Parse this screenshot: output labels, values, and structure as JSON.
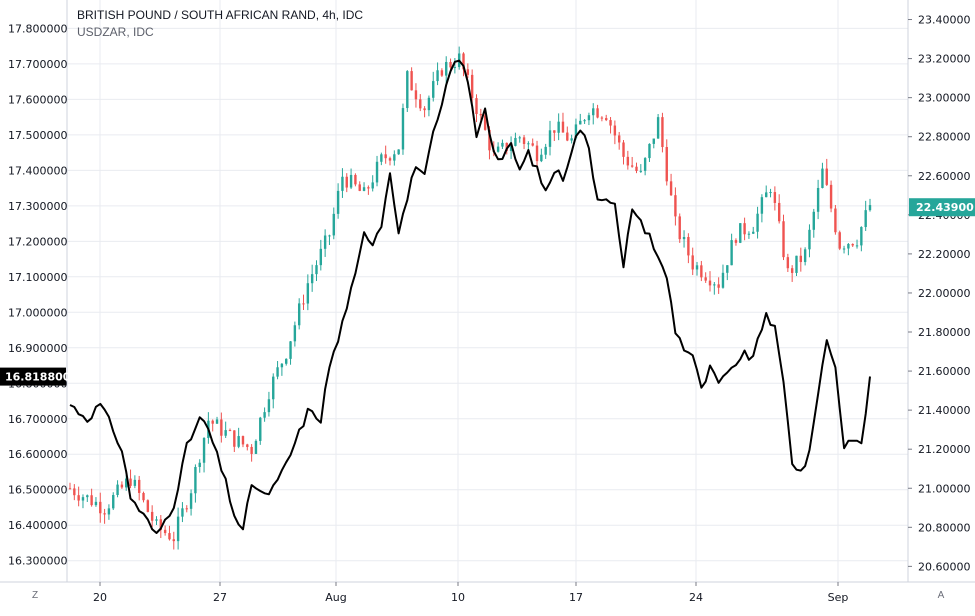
{
  "header": {
    "title": "BRITISH POUND / SOUTH AFRICAN RAND, 4h, IDC",
    "compare_symbol": "USDZAR, IDC"
  },
  "buttons": {
    "left": "Z",
    "right": "A"
  },
  "colors": {
    "up": "#26a69a",
    "down": "#ef5350",
    "line": "#000000",
    "grid": "#e9ebf0",
    "axis": "#787b86",
    "last_price_bg": "#26a69a",
    "compare_price_bg": "#000000"
  },
  "chart_data": {
    "type": "candlestick",
    "left_axis": {
      "ticks": [
        "17.800000",
        "17.700000",
        "17.600000",
        "17.500000",
        "17.400000",
        "17.300000",
        "17.200000",
        "17.100000",
        "17.000000",
        "16.900000",
        "16.800000",
        "16.700000",
        "16.600000",
        "16.500000",
        "16.400000",
        "16.300000"
      ],
      "range": [
        16.24,
        17.88
      ],
      "current_label": "16.818800",
      "current_value": 16.8188,
      "series": "USDZAR, IDC"
    },
    "right_axis": {
      "ticks": [
        "23.40000",
        "23.20000",
        "23.00000",
        "22.80000",
        "22.60000",
        "22.40000",
        "22.20000",
        "22.00000",
        "21.80000",
        "21.60000",
        "21.40000",
        "21.20000",
        "21.00000",
        "20.80000",
        "20.60000"
      ],
      "range": [
        20.52,
        23.5
      ],
      "current_label": "22.43900",
      "current_value": 22.439,
      "series": "BRITISH POUND / SOUTH AFRICAN RAND"
    },
    "x_labels": [
      "20",
      "27",
      "Aug",
      "10",
      "17",
      "24",
      "Sep"
    ],
    "gbpzar_anchors": [
      [
        0,
        21.0
      ],
      [
        8,
        20.9
      ],
      [
        14,
        21.05
      ],
      [
        20,
        20.8
      ],
      [
        24,
        20.75
      ],
      [
        28,
        21.0
      ],
      [
        32,
        21.35
      ],
      [
        38,
        21.25
      ],
      [
        42,
        21.2
      ],
      [
        46,
        21.5
      ],
      [
        50,
        21.7
      ],
      [
        55,
        22.05
      ],
      [
        60,
        22.3
      ],
      [
        63,
        22.6
      ],
      [
        68,
        22.5
      ],
      [
        72,
        22.68
      ],
      [
        76,
        22.75
      ],
      [
        78,
        23.1
      ],
      [
        82,
        22.95
      ],
      [
        86,
        23.15
      ],
      [
        90,
        23.2
      ],
      [
        94,
        22.95
      ],
      [
        98,
        22.7
      ],
      [
        104,
        22.8
      ],
      [
        108,
        22.72
      ],
      [
        112,
        22.85
      ],
      [
        116,
        22.78
      ],
      [
        120,
        22.95
      ],
      [
        124,
        22.92
      ],
      [
        128,
        22.7
      ],
      [
        132,
        22.6
      ],
      [
        136,
        22.88
      ],
      [
        140,
        22.35
      ],
      [
        144,
        22.15
      ],
      [
        150,
        22.05
      ],
      [
        154,
        22.3
      ],
      [
        158,
        22.35
      ],
      [
        162,
        22.55
      ],
      [
        166,
        22.1
      ],
      [
        170,
        22.2
      ],
      [
        174,
        22.62
      ],
      [
        178,
        22.25
      ],
      [
        182,
        22.28
      ],
      [
        185,
        22.45
      ]
    ],
    "usdzar_anchors": [
      [
        0,
        16.74
      ],
      [
        4,
        16.7
      ],
      [
        7,
        16.74
      ],
      [
        10,
        16.67
      ],
      [
        12,
        16.61
      ],
      [
        14,
        16.48
      ],
      [
        18,
        16.41
      ],
      [
        20,
        16.37
      ],
      [
        24,
        16.46
      ],
      [
        27,
        16.62
      ],
      [
        30,
        16.7
      ],
      [
        32,
        16.67
      ],
      [
        36,
        16.52
      ],
      [
        38,
        16.43
      ],
      [
        40,
        16.38
      ],
      [
        42,
        16.52
      ],
      [
        45,
        16.48
      ],
      [
        48,
        16.52
      ],
      [
        51,
        16.6
      ],
      [
        55,
        16.72
      ],
      [
        58,
        16.7
      ],
      [
        60,
        16.85
      ],
      [
        62,
        16.92
      ],
      [
        64,
        17.02
      ],
      [
        66,
        17.1
      ],
      [
        68,
        17.22
      ],
      [
        70,
        17.2
      ],
      [
        72,
        17.25
      ],
      [
        74,
        17.4
      ],
      [
        76,
        17.23
      ],
      [
        78,
        17.32
      ],
      [
        80,
        17.42
      ],
      [
        82,
        17.38
      ],
      [
        84,
        17.5
      ],
      [
        86,
        17.58
      ],
      [
        88,
        17.68
      ],
      [
        90,
        17.72
      ],
      [
        92,
        17.65
      ],
      [
        94,
        17.5
      ],
      [
        96,
        17.58
      ],
      [
        98,
        17.45
      ],
      [
        100,
        17.43
      ],
      [
        102,
        17.47
      ],
      [
        104,
        17.4
      ],
      [
        106,
        17.45
      ],
      [
        108,
        17.4
      ],
      [
        110,
        17.34
      ],
      [
        112,
        17.4
      ],
      [
        114,
        17.38
      ],
      [
        116,
        17.46
      ],
      [
        118,
        17.52
      ],
      [
        120,
        17.46
      ],
      [
        122,
        17.32
      ],
      [
        124,
        17.33
      ],
      [
        126,
        17.3
      ],
      [
        128,
        17.12
      ],
      [
        130,
        17.3
      ],
      [
        132,
        17.25
      ],
      [
        134,
        17.22
      ],
      [
        136,
        17.15
      ],
      [
        138,
        17.1
      ],
      [
        140,
        16.95
      ],
      [
        142,
        16.9
      ],
      [
        144,
        16.88
      ],
      [
        146,
        16.78
      ],
      [
        148,
        16.84
      ],
      [
        150,
        16.8
      ],
      [
        152,
        16.82
      ],
      [
        154,
        16.86
      ],
      [
        156,
        16.88
      ],
      [
        158,
        16.87
      ],
      [
        161,
        17.0
      ],
      [
        163,
        16.95
      ],
      [
        165,
        16.8
      ],
      [
        167,
        16.58
      ],
      [
        169,
        16.55
      ],
      [
        171,
        16.6
      ],
      [
        173,
        16.78
      ],
      [
        175,
        16.92
      ],
      [
        177,
        16.85
      ],
      [
        179,
        16.62
      ],
      [
        181,
        16.65
      ],
      [
        183,
        16.62
      ],
      [
        185,
        16.82
      ]
    ]
  }
}
